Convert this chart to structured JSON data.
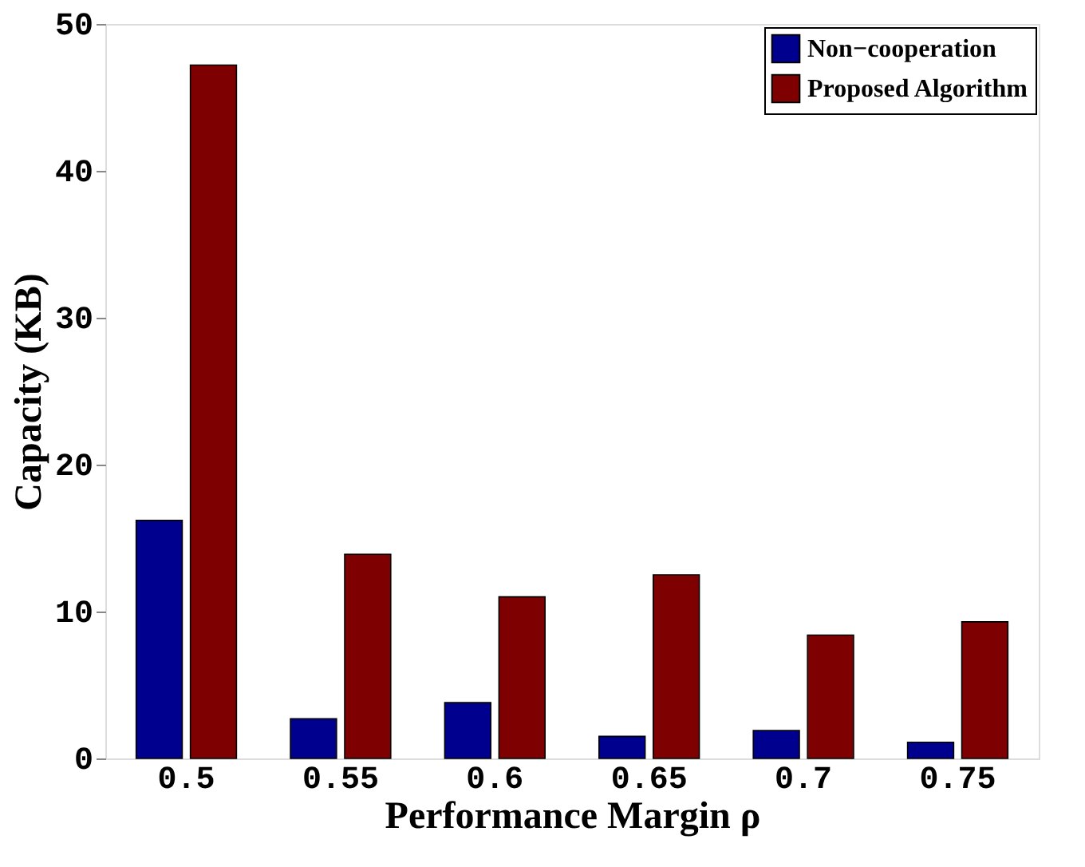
{
  "chart_data": {
    "type": "bar",
    "xlabel": "Performance Margin ρ",
    "ylabel": "Capacity (KB)",
    "categories": [
      "0.5",
      "0.55",
      "0.6",
      "0.65",
      "0.7",
      "0.75"
    ],
    "series": [
      {
        "name": "Non−cooperation",
        "color": "#00008f",
        "values": [
          16.2,
          2.7,
          3.8,
          1.5,
          1.9,
          1.1
        ]
      },
      {
        "name": "Proposed Algorithm",
        "color": "#7f0000",
        "values": [
          47.2,
          13.9,
          11.0,
          12.5,
          8.4,
          9.3
        ]
      }
    ],
    "ylim": [
      0,
      50
    ],
    "yticks": [
      0,
      10,
      20,
      30,
      40,
      50
    ],
    "grid": false,
    "legend": "top right"
  }
}
